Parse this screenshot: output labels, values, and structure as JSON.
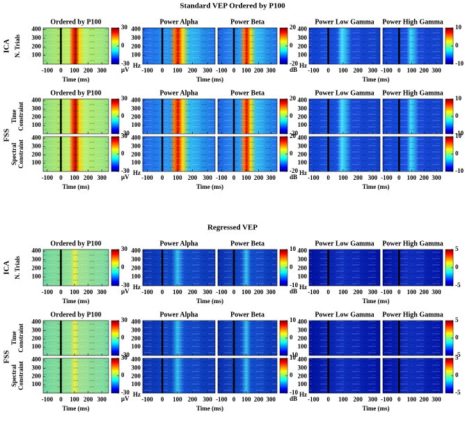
{
  "figure": {
    "xlabel": "Time (ms)",
    "xlim": [
      -130,
      350
    ],
    "xticks": [
      -100,
      0,
      100,
      200,
      300
    ],
    "ylim": [
      0,
      420
    ],
    "yticks": [
      100,
      200,
      300,
      400
    ],
    "freq_unit": "Hz",
    "rows": [
      {
        "method": "ICA",
        "sublabels": [
          [
            "N. Trials"
          ]
        ]
      },
      {
        "method": "FSS",
        "sublabels": [
          [
            "Time",
            "Constraint"
          ],
          [
            "Spectral",
            "Constraint"
          ]
        ]
      }
    ],
    "sections": [
      {
        "title": "Standard VEP Ordered by P100",
        "groups": [
          {
            "titles": [
              "Ordered by P100"
            ],
            "unit": "μV",
            "clim": [
              -30,
              30
            ],
            "cticks": [
              30,
              0,
              -30
            ]
          },
          {
            "titles": [
              "Power Alpha",
              "Power Beta"
            ],
            "unit": "dB",
            "clim": [
              -20,
              20
            ],
            "cticks": [
              20,
              0,
              -20
            ]
          },
          {
            "titles": [
              "Power Low Gamma",
              "Power High Gamma"
            ],
            "clim": [
              -10,
              10
            ],
            "cticks": [
              10,
              0,
              -10
            ]
          }
        ]
      },
      {
        "title": "Regressed VEP",
        "groups": [
          {
            "titles": [
              "Ordered by P100"
            ],
            "unit": "μV",
            "clim": [
              -30,
              30
            ],
            "cticks": [
              30,
              0,
              -30
            ]
          },
          {
            "titles": [
              "Power Alpha",
              "Power Beta"
            ],
            "unit": "dB",
            "clim": [
              -10,
              10
            ],
            "cticks": [
              10,
              0,
              -10
            ]
          },
          {
            "titles": [
              "Power Low Gamma",
              "Power High Gamma"
            ],
            "clim": [
              -5,
              5
            ],
            "cticks": [
              5,
              0,
              -5
            ]
          }
        ]
      }
    ]
  }
}
